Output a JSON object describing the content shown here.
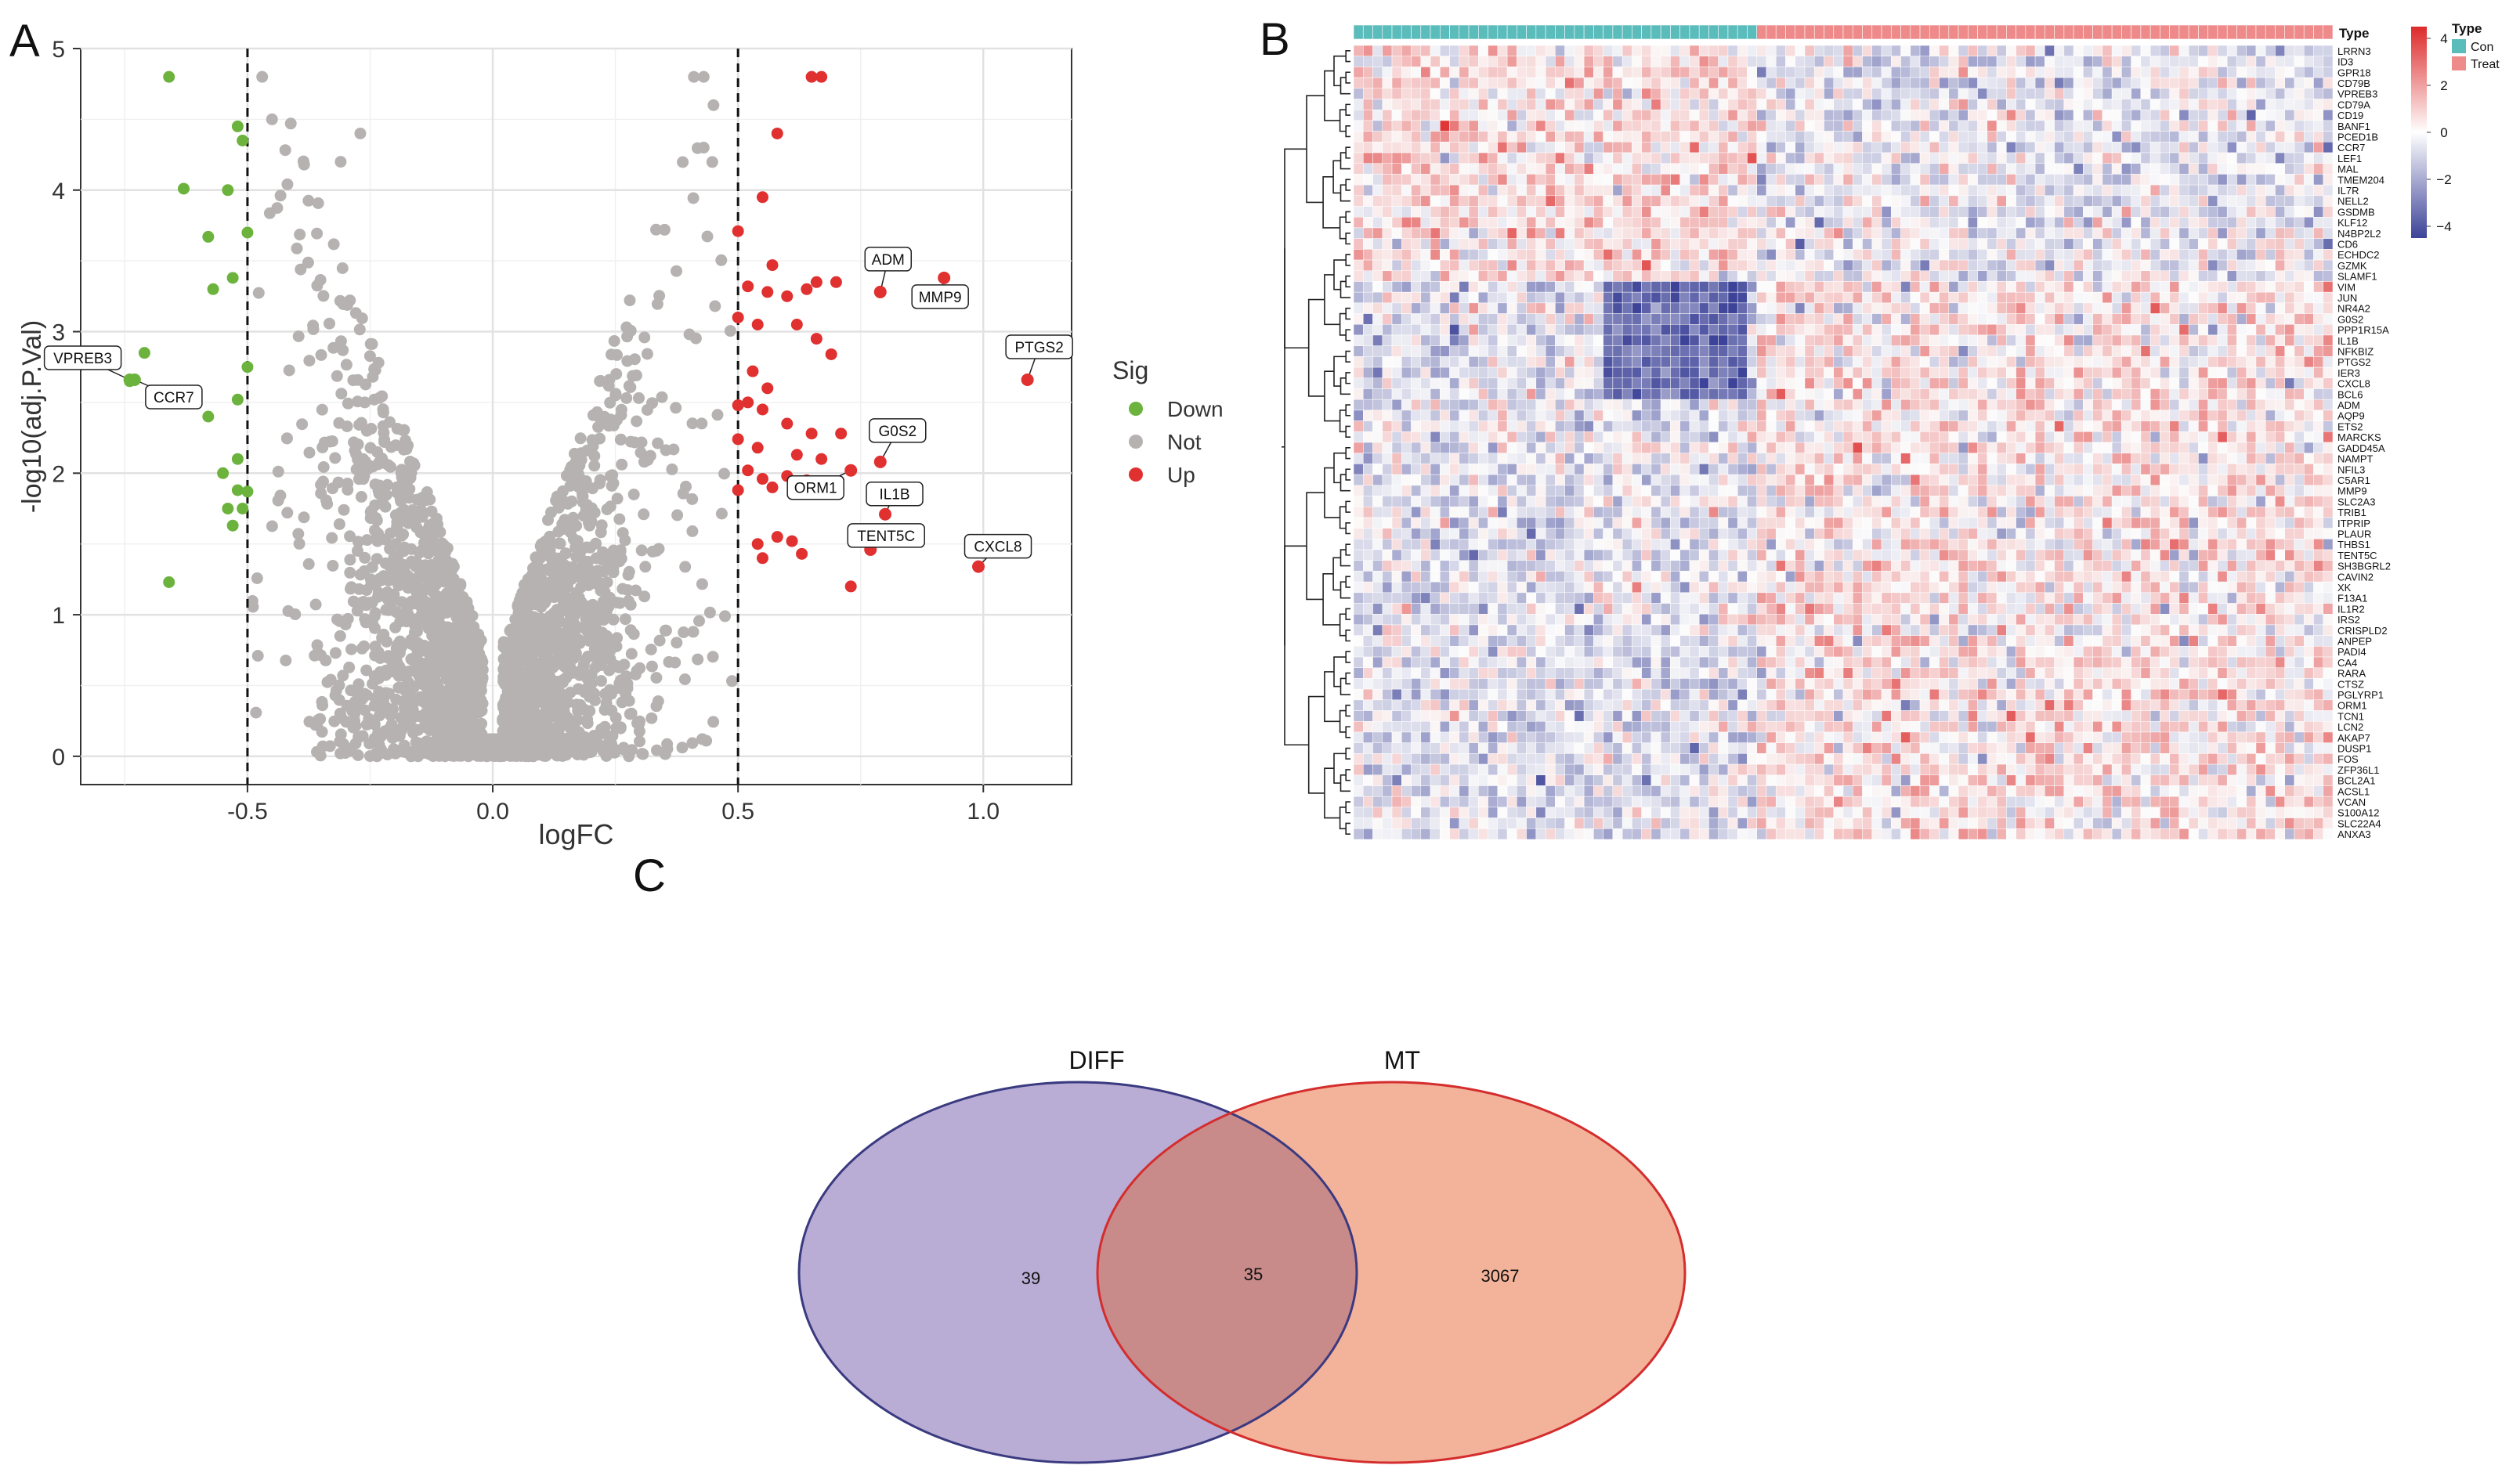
{
  "panels": {
    "a": "A",
    "b": "B",
    "c": "C"
  },
  "chart_data": [
    {
      "type": "scatter",
      "panel": "A",
      "title": "",
      "xlabel": "logFC",
      "ylabel": "-log10(adj.P.Val)",
      "xlim": [
        -0.84,
        1.18
      ],
      "ylim": [
        -0.2,
        5.0
      ],
      "xticks": [
        -0.5,
        0.0,
        0.5,
        1.0
      ],
      "xtick_labels": [
        "-0.5",
        "0.0",
        "0.5",
        "1.0"
      ],
      "yticks": [
        0,
        1,
        2,
        3,
        4,
        5
      ],
      "ytick_labels": [
        "0",
        "1",
        "2",
        "3",
        "4",
        "5"
      ],
      "grid": true,
      "thresholds_x": [
        -0.5,
        0.5
      ],
      "legend": {
        "title": "Sig",
        "position": "right",
        "entries": [
          {
            "label": "Down",
            "color": "#6cb33e"
          },
          {
            "label": "Not",
            "color": "#b7b2b2"
          },
          {
            "label": "Up",
            "color": "#e03030"
          }
        ]
      },
      "series": [
        {
          "name": "Down",
          "color": "#6cb33e",
          "points": [
            [
              -0.66,
              4.8
            ],
            [
              -0.63,
              4.01
            ],
            [
              -0.54,
              4.0
            ],
            [
              -0.52,
              4.45
            ],
            [
              -0.51,
              4.35
            ],
            [
              -0.5,
              3.7
            ],
            [
              -0.58,
              3.67
            ],
            [
              -0.53,
              3.38
            ],
            [
              -0.57,
              3.3
            ],
            [
              -0.5,
              2.75
            ],
            [
              -0.52,
              2.52
            ],
            [
              -0.58,
              2.4
            ],
            [
              -0.71,
              2.85
            ],
            [
              -0.74,
              2.65
            ],
            [
              -0.52,
              2.1
            ],
            [
              -0.55,
              2.0
            ],
            [
              -0.52,
              1.88
            ],
            [
              -0.5,
              1.87
            ],
            [
              -0.54,
              1.75
            ],
            [
              -0.51,
              1.75
            ],
            [
              -0.53,
              1.63
            ],
            [
              -0.66,
              1.23
            ]
          ]
        },
        {
          "name": "Up",
          "color": "#e03030",
          "points": [
            [
              0.65,
              4.8
            ],
            [
              0.67,
              4.8
            ],
            [
              0.58,
              4.4
            ],
            [
              0.55,
              3.95
            ],
            [
              0.5,
              3.71
            ],
            [
              0.57,
              3.47
            ],
            [
              0.52,
              3.32
            ],
            [
              0.56,
              3.28
            ],
            [
              0.6,
              3.25
            ],
            [
              0.64,
              3.3
            ],
            [
              0.66,
              3.35
            ],
            [
              0.7,
              3.35
            ],
            [
              0.5,
              3.1
            ],
            [
              0.54,
              3.05
            ],
            [
              0.62,
              3.05
            ],
            [
              0.66,
              2.95
            ],
            [
              0.69,
              2.84
            ],
            [
              0.53,
              2.72
            ],
            [
              0.56,
              2.6
            ],
            [
              0.52,
              2.5
            ],
            [
              0.5,
              2.48
            ],
            [
              0.55,
              2.45
            ],
            [
              0.6,
              2.35
            ],
            [
              0.65,
              2.28
            ],
            [
              0.71,
              2.28
            ],
            [
              0.5,
              2.24
            ],
            [
              0.54,
              2.18
            ],
            [
              0.62,
              2.13
            ],
            [
              0.67,
              2.1
            ],
            [
              0.52,
              2.02
            ],
            [
              0.55,
              1.96
            ],
            [
              0.6,
              1.98
            ],
            [
              0.64,
              1.95
            ],
            [
              0.57,
              1.9
            ],
            [
              0.5,
              1.88
            ],
            [
              0.68,
              1.86
            ],
            [
              0.58,
              1.55
            ],
            [
              0.61,
              1.52
            ],
            [
              0.54,
              1.5
            ],
            [
              0.63,
              1.43
            ],
            [
              0.55,
              1.4
            ],
            [
              0.73,
              1.2
            ]
          ]
        }
      ],
      "labeled_points": [
        {
          "label": "VPREB3",
          "x": -0.74,
          "y": 2.66,
          "color": "#6cb33e"
        },
        {
          "label": "CCR7",
          "x": -0.73,
          "y": 2.66,
          "color": "#6cb33e"
        },
        {
          "label": "ADM",
          "x": 0.79,
          "y": 3.28,
          "color": "#e03030"
        },
        {
          "label": "MMP9",
          "x": 0.92,
          "y": 3.38,
          "color": "#e03030"
        },
        {
          "label": "PTGS2",
          "x": 1.09,
          "y": 2.66,
          "color": "#e03030"
        },
        {
          "label": "G0S2",
          "x": 0.79,
          "y": 2.08,
          "color": "#e03030"
        },
        {
          "label": "ORM1",
          "x": 0.73,
          "y": 2.02,
          "color": "#e03030"
        },
        {
          "label": "IL1B",
          "x": 0.8,
          "y": 1.71,
          "color": "#e03030"
        },
        {
          "label": "TENT5C",
          "x": 0.77,
          "y": 1.46,
          "color": "#e03030"
        },
        {
          "label": "CXCL8",
          "x": 0.99,
          "y": 1.34,
          "color": "#e03030"
        }
      ],
      "not_series_color": "#b7b2b2"
    },
    {
      "type": "heatmap",
      "panel": "B",
      "annotation_title": "Type",
      "groups": [
        {
          "label": "Con",
          "color": "#5bbcbc",
          "count": 42
        },
        {
          "label": "Treat",
          "color": "#ee8a8a",
          "count": 60
        }
      ],
      "legend": {
        "title": "Type",
        "position": "top-right",
        "scale_ticks": [
          4,
          2,
          0,
          -2,
          -4
        ],
        "scale_tick_labels": [
          "4",
          "2",
          "0",
          "−2",
          "−4"
        ],
        "scale_colors": [
          "#dd2a2a",
          "#ffffff",
          "#3d4398"
        ]
      },
      "genes": [
        "LRRN3",
        "ID3",
        "GPR18",
        "CD79B",
        "VPREB3",
        "CD79A",
        "CD19",
        "BANF1",
        "PCED1B",
        "CCR7",
        "LEF1",
        "MAL",
        "TMEM204",
        "IL7R",
        "NELL2",
        "GSDMB",
        "KLF12",
        "N4BP2L2",
        "CD6",
        "ECHDC2",
        "GZMK",
        "SLAMF1",
        "VIM",
        "JUN",
        "NR4A2",
        "G0S2",
        "PPP1R15A",
        "IL1B",
        "NFKBIZ",
        "PTGS2",
        "IER3",
        "CXCL8",
        "BCL6",
        "ADM",
        "AQP9",
        "ETS2",
        "MARCKS",
        "GADD45A",
        "NAMPT",
        "NFIL3",
        "C5AR1",
        "MMP9",
        "SLC2A3",
        "TRIB1",
        "ITPRIP",
        "PLAUR",
        "THBS1",
        "TENT5C",
        "SH3BGRL2",
        "CAVIN2",
        "XK",
        "F13A1",
        "IL1R2",
        "IRS2",
        "CRISPLD2",
        "ANPEP",
        "PADI4",
        "CA4",
        "RARA",
        "CTSZ",
        "PGLYRP1",
        "ORM1",
        "TCN1",
        "LCN2",
        "AKAP7",
        "DUSP1",
        "FOS",
        "ZFP36L1",
        "BCL2A1",
        "ACSL1",
        "VCAN",
        "S100A12",
        "SLC22A4",
        "ANXA3"
      ]
    },
    {
      "type": "venn",
      "panel": "C",
      "sets": [
        {
          "name": "DIFF",
          "only": "39",
          "fill": "#b9add5",
          "stroke": "#3a3a80"
        },
        {
          "name": "MT",
          "only": "3067",
          "fill": "#f3b39b",
          "stroke": "#d42d2d"
        }
      ],
      "intersection": "35",
      "intersection_fill": "#c98a8a"
    }
  ]
}
